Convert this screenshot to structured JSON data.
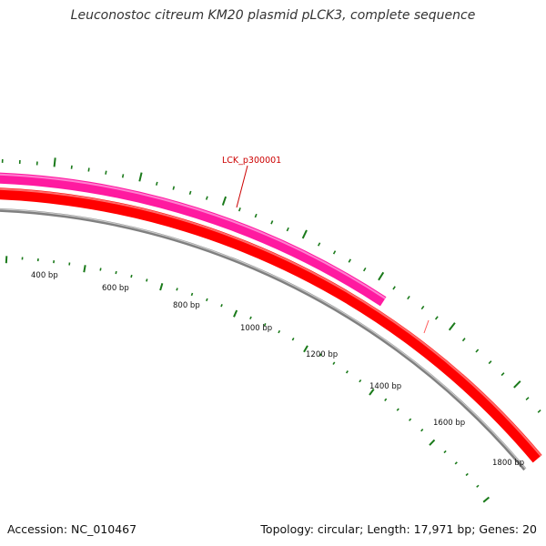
{
  "title": "Leuconostoc citreum KM20 plasmid pLCK3, complete sequence",
  "footer": {
    "accession": "Accession: NC_010467",
    "summary": "Topology: circular; Length: 17,971 bp; Genes: 20"
  },
  "colors": {
    "forward_gene": "#ff1aa0",
    "reverse_gene": "#ff0000",
    "backbone": "#808080",
    "ticks": "#1a7a1a",
    "gene_label": "#cc0000"
  },
  "gene_label": "LCK_p300001",
  "tick_labels": [
    "400 bp",
    "600 bp",
    "800 bp",
    "1000 bp",
    "1200 bp",
    "1400 bp",
    "1600 bp",
    "1800 bp"
  ]
}
